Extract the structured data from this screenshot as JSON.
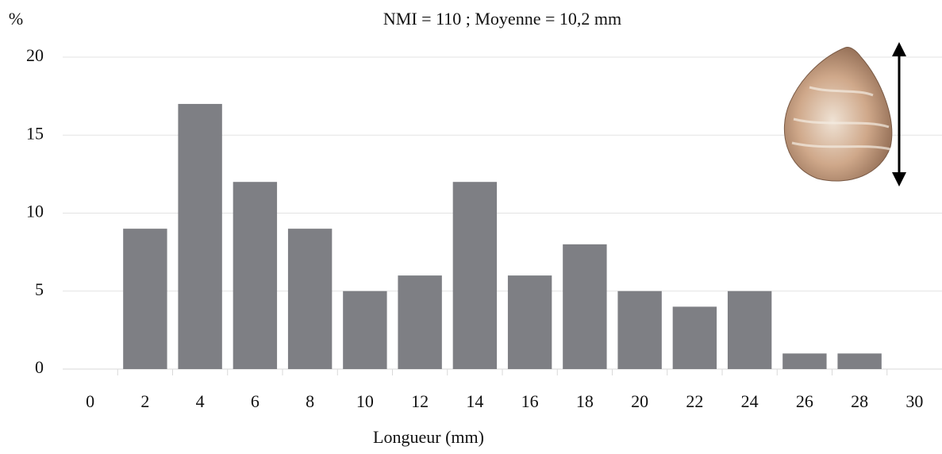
{
  "chart_data": {
    "type": "bar",
    "title": "NMI = 110 ; Moyenne = 10,2 mm",
    "ylabel": "%",
    "xlabel": "Longueur (mm)",
    "categories": [
      "0",
      "2",
      "4",
      "6",
      "8",
      "10",
      "12",
      "14",
      "16",
      "18",
      "20",
      "22",
      "24",
      "26",
      "28",
      "30"
    ],
    "values": [
      null,
      9,
      17,
      12,
      9,
      5,
      6,
      12,
      6,
      8,
      5,
      4,
      5,
      1,
      1,
      null
    ],
    "color": "#7e7f84",
    "ylim": [
      0,
      20
    ],
    "yticks": [
      0,
      5,
      10,
      15,
      20
    ],
    "grid": true
  }
}
